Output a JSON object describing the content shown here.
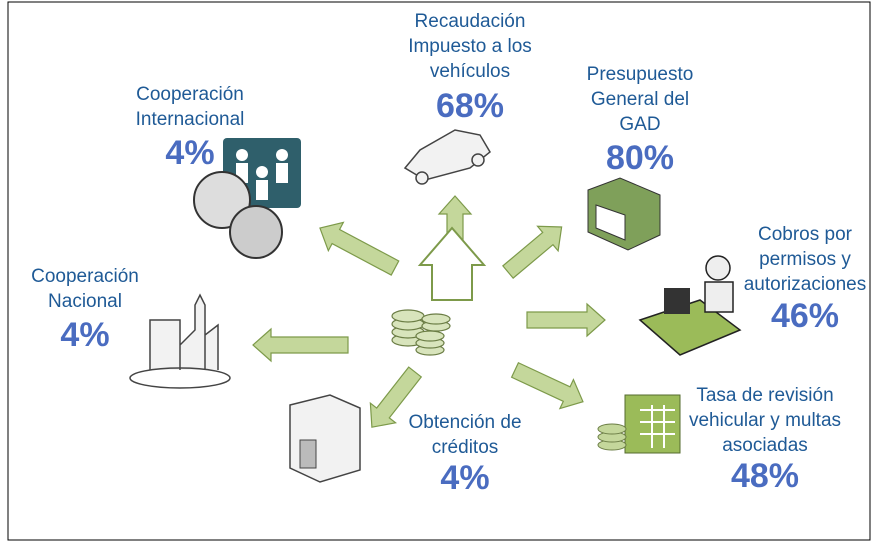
{
  "nodes": [
    {
      "label": [
        "Recaudación",
        "Impuesto a los",
        "vehículos"
      ],
      "percent": "68%"
    },
    {
      "label": [
        "Presupuesto",
        "General del",
        "GAD"
      ],
      "percent": "80%"
    },
    {
      "label": [
        "Cooperación",
        "Internacional"
      ],
      "percent": "4%"
    },
    {
      "label": [
        "Cooperación",
        "Nacional"
      ],
      "percent": "4%"
    },
    {
      "label": [
        "Cobros por",
        "permisos y",
        "autorizaciones"
      ],
      "percent": "46%"
    },
    {
      "label": [
        "Obtención de",
        "créditos"
      ],
      "percent": "4%"
    },
    {
      "label": [
        "Tasa de revisión",
        "vehicular y multas",
        "asociadas"
      ],
      "percent": "48%"
    }
  ]
}
